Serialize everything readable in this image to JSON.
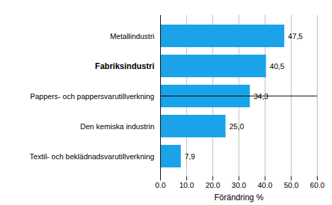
{
  "chart_data": {
    "type": "bar",
    "orientation": "horizontal",
    "categories": [
      "Metallindustri",
      "Fabriksindustri",
      "Pappers- och pappersvarutillverkning",
      "Den kemiska industrin",
      "Textil- och beklädnadsvarutillverkning"
    ],
    "values": [
      47.5,
      40.5,
      34.3,
      25.0,
      7.9
    ],
    "value_labels": [
      "47,5",
      "40,5",
      "34,3",
      "25,0",
      "7,9"
    ],
    "data_labels": true,
    "color": "#1aa3e8",
    "x_label": "Förändring %",
    "xlim": [
      0,
      60
    ],
    "xticks": [
      {
        "value": 0,
        "label": "0.0"
      },
      {
        "value": 10,
        "label": "10.0"
      },
      {
        "value": 20,
        "label": "20.0"
      },
      {
        "value": 30,
        "label": "30.0"
      },
      {
        "value": 40,
        "label": "40.0"
      },
      {
        "value": 50,
        "label": "50.0"
      },
      {
        "value": 60,
        "label": "60.0"
      }
    ],
    "grid": true
  }
}
